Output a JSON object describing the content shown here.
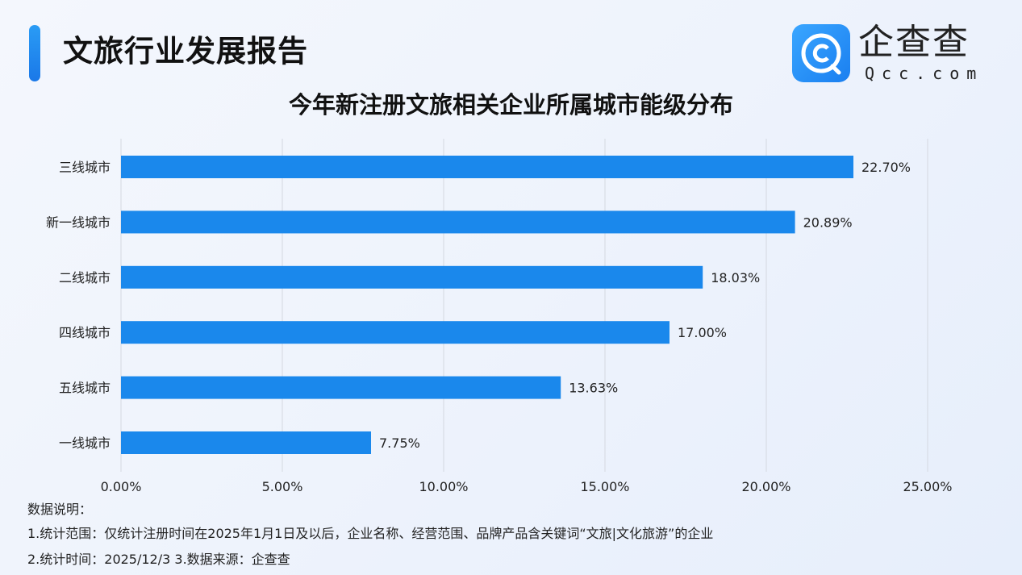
{
  "header": {
    "title": "文旅行业发展报告",
    "accent_color": "#1a86ee"
  },
  "logo": {
    "cn": "企查查",
    "en": "Qcc.com"
  },
  "chart_data": {
    "type": "bar",
    "orientation": "horizontal",
    "title": "今年新注册文旅相关企业所属城市能级分布",
    "categories": [
      "三线城市",
      "新一线城市",
      "二线城市",
      "四线城市",
      "五线城市",
      "一线城市"
    ],
    "values": [
      22.7,
      20.89,
      18.03,
      17.0,
      13.63,
      7.75
    ],
    "data_labels": [
      "22.70%",
      "20.89%",
      "18.03%",
      "17.00%",
      "13.63%",
      "7.75%"
    ],
    "xlim": [
      0,
      25
    ],
    "xticks": [
      0,
      5,
      10,
      15,
      20,
      25
    ],
    "xtick_labels": [
      "0.00%",
      "5.00%",
      "10.00%",
      "15.00%",
      "20.00%",
      "25.00%"
    ],
    "grid": "vertical",
    "bar_color": "#1a88ec"
  },
  "notes": {
    "heading": "数据说明：",
    "line1": "1.统计范围：仅统计注册时间在2025年1月1日及以后，企业名称、经营范围、品牌产品含关键词“文旅|文化旅游”的企业",
    "line2": " 2.统计时间：2025/12/3  3.数据来源：企查查"
  }
}
